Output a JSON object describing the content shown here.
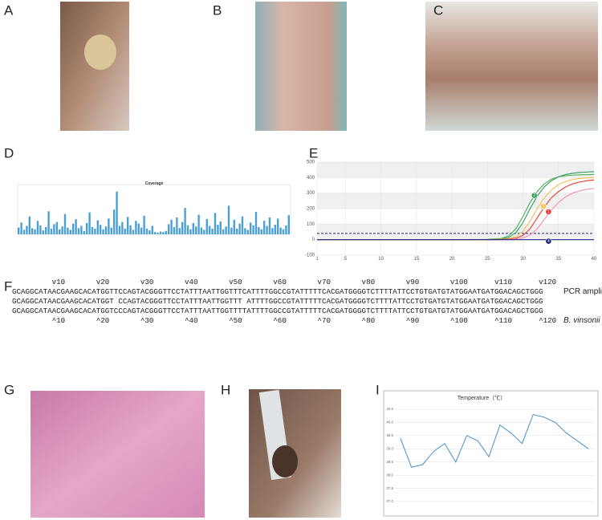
{
  "panel_labels": [
    "A",
    "B",
    "C",
    "D",
    "E",
    "F",
    "G",
    "H",
    "I"
  ],
  "coverage": {
    "type": "bar",
    "title": "Coverage",
    "color": "#4a9fd4",
    "ylim": [
      0,
      8
    ],
    "values": [
      1.2,
      2.1,
      0.8,
      1.5,
      3.2,
      1.1,
      0.9,
      2.4,
      1.6,
      0.7,
      1.3,
      4.1,
      1.0,
      1.8,
      2.2,
      0.9,
      1.4,
      3.6,
      1.2,
      0.8,
      1.9,
      2.7,
      1.1,
      1.5,
      0.6,
      2.0,
      3.9,
      1.3,
      1.0,
      2.5,
      1.7,
      0.9,
      1.4,
      2.8,
      1.2,
      4.4,
      7.6,
      1.5,
      2.2,
      1.0,
      3.1,
      1.6,
      0.8,
      2.4,
      1.9,
      1.2,
      3.3,
      1.0,
      0.7,
      1.5,
      0.4,
      0.3,
      0.5,
      0.4,
      0.6,
      1.8,
      2.6,
      1.3,
      3.0,
      1.1,
      2.2,
      4.7,
      1.6,
      0.9,
      2.0,
      1.4,
      3.5,
      1.2,
      0.8,
      2.7,
      1.5,
      1.0,
      3.8,
      1.7,
      2.3,
      0.9,
      1.4,
      5.1,
      1.2,
      2.6,
      1.0,
      1.9,
      3.2,
      1.1,
      0.8,
      2.1,
      1.6,
      4.0,
      1.3,
      0.9,
      2.4,
      1.5,
      3.0,
      1.1,
      1.7,
      2.8,
      1.2,
      0.9,
      1.6,
      3.4
    ]
  },
  "qpcr": {
    "type": "line",
    "xlim": [
      1,
      40
    ],
    "ylim": [
      -100,
      500
    ],
    "xticks": [
      1,
      5,
      10,
      15,
      20,
      25,
      30,
      35,
      40
    ],
    "yticks": [
      -100,
      0,
      100,
      200,
      300,
      400,
      500
    ],
    "threshold": 40,
    "x": [
      1,
      10,
      20,
      25,
      27,
      28,
      29,
      30,
      31,
      32,
      33,
      34,
      35,
      36,
      37,
      38,
      39,
      40
    ],
    "series": [
      {
        "color": "#4caf50",
        "values": [
          0,
          0,
          0,
          2,
          8,
          25,
          70,
          150,
          240,
          310,
          360,
          390,
          405,
          412,
          416,
          418,
          419,
          420
        ]
      },
      {
        "color": "#2e9e5b",
        "values": [
          0,
          0,
          0,
          1,
          5,
          15,
          45,
          110,
          200,
          280,
          340,
          380,
          405,
          420,
          428,
          433,
          436,
          438
        ]
      },
      {
        "color": "#f2c14e",
        "values": [
          0,
          0,
          0,
          0,
          3,
          8,
          20,
          55,
          120,
          200,
          270,
          320,
          355,
          375,
          388,
          395,
          398,
          400
        ]
      },
      {
        "color": "#e53935",
        "values": [
          0,
          0,
          0,
          0,
          1,
          4,
          10,
          28,
          70,
          140,
          210,
          270,
          310,
          340,
          360,
          372,
          380,
          385
        ]
      },
      {
        "color": "#f48fb1",
        "values": [
          0,
          0,
          0,
          0,
          0,
          2,
          5,
          12,
          30,
          70,
          130,
          190,
          240,
          275,
          300,
          315,
          325,
          330
        ]
      },
      {
        "color": "#1a237e",
        "values": [
          0,
          0,
          0,
          0,
          0,
          0,
          0,
          0,
          0,
          0,
          0,
          0,
          0,
          0,
          0,
          0,
          0,
          0
        ]
      }
    ],
    "markers": [
      {
        "label": "1",
        "x": 33.6,
        "y": 180,
        "color": "#e53935"
      },
      {
        "label": "2",
        "x": 31.6,
        "y": 285,
        "color": "#2e9e5b"
      },
      {
        "label": "3",
        "x": 32.9,
        "y": 215,
        "color": "#f2c14e"
      },
      {
        "label": "4",
        "x": 33.6,
        "y": -10,
        "color": "#1a237e"
      }
    ]
  },
  "alignment": {
    "top_ruler": "         v10       v20       v30       v40       v50       v60       v70       v80       v90       v100      v110      v120",
    "rows": [
      "GCAGGCATAACGAAGCACATGGTTCCAGTACGGGTTCCTATTTAATTGGTTTCATTTTGGCCGTATTTTTCACGATGGGGTCTTTTATTCCTGTGATGTATGGAATGATGGACAGCTGGG",
      "GCAGGCATAACGAAGCACATGGT CCAGTACGGGTTCCTATTTAATTGGTTT ATTTTGGCCGTATTTTTCACGATGGGGTCTTTTATTCCTGTGATGTATGGAATGATGGACAGCTGGG",
      "GCAGGCATAACGAAGCACATGGTCCCAGTACGGGTTCCTATTTAATTGGTTTTATTTTGGCCGTATTTTTCACGATGGGGTCTTTTATTCCTGTGATGTATGGAATGATGGACAGCTGGG"
    ],
    "bottom_ruler": "         ^10       ^20       ^30       ^40       ^50       ^60       ^70       ^80       ^90       ^100      ^110      ^120",
    "query_label": "PCR amplicon",
    "ref_label": "B. vinsonii ref"
  },
  "temperature": {
    "type": "line",
    "title": "Temperature（℃）",
    "color": "#4a90c8",
    "categories": [
      null,
      null,
      null,
      null,
      null,
      null,
      null,
      null,
      null,
      null,
      null,
      null,
      null,
      null,
      null,
      null,
      null,
      null
    ],
    "values": [
      39.4,
      38.3,
      38.4,
      38.9,
      39.2,
      38.5,
      39.5,
      39.3,
      38.7,
      39.9,
      39.6,
      39.2,
      40.3,
      40.2,
      40.0,
      39.6,
      39.3,
      39.0
    ],
    "ylim": [
      37,
      40.5
    ],
    "yticks": [
      {
        "value": 37,
        "label": "37.0"
      },
      37.5,
      {
        "value": 38,
        "label": "38.0"
      },
      38.5,
      {
        "value": 39,
        "label": "39.0"
      },
      39.5,
      {
        "value": 40,
        "label": "40.0"
      },
      40.5
    ],
    "grid": true
  }
}
